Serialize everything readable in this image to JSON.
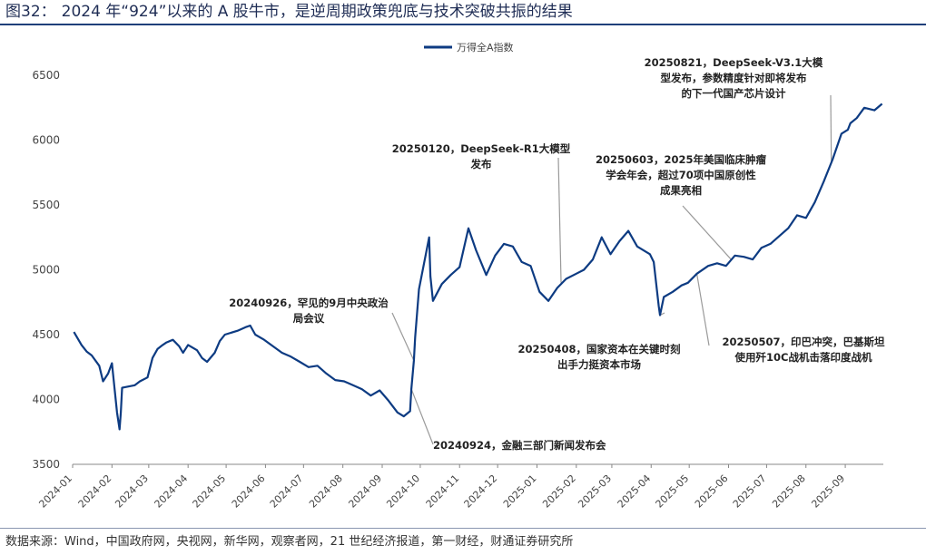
{
  "header": {
    "figure_number": "图32：",
    "title": "2024 年“924”以来的 A 股牛市，是逆周期政策兜底与技术突破共振的结果"
  },
  "footer": {
    "source": "数据来源：Wind，中国政府网，央视网，新华网，观察者网，21 世纪经济报道，第一财经，财通证券研究所"
  },
  "colors": {
    "line": "#0d3b82",
    "leader": "#9a9a9a",
    "rule": "#1f3f7a"
  },
  "chart_data": {
    "type": "line",
    "title": "",
    "xlabel": "",
    "ylabel": "",
    "ylim": [
      3500,
      6500
    ],
    "yticks": [
      "3500",
      "4000",
      "4500",
      "5000",
      "5500",
      "6000",
      "6500"
    ],
    "grid": false,
    "legend_position": "top-center",
    "x_ticks": [
      "2024-01",
      "2024-02",
      "2024-03",
      "2024-04",
      "2024-05",
      "2024-06",
      "2024-07",
      "2024-08",
      "2024-09",
      "2024-10",
      "2024-11",
      "2024-12",
      "2025-01",
      "2025-02",
      "2025-03",
      "2025-04",
      "2025-05",
      "2025-06",
      "2025-07",
      "2025-08",
      "2025-09"
    ],
    "series": [
      {
        "name": "万得全A指数",
        "points": [
          [
            "2024-01-02",
            4520
          ],
          [
            "2024-01-08",
            4420
          ],
          [
            "2024-01-12",
            4370
          ],
          [
            "2024-01-16",
            4340
          ],
          [
            "2024-01-22",
            4260
          ],
          [
            "2024-01-25",
            4140
          ],
          [
            "2024-01-29",
            4200
          ],
          [
            "2024-02-01",
            4280
          ],
          [
            "2024-02-05",
            3900
          ],
          [
            "2024-02-07",
            3770
          ],
          [
            "2024-02-08",
            3900
          ],
          [
            "2024-02-09",
            4090
          ],
          [
            "2024-02-19",
            4110
          ],
          [
            "2024-02-23",
            4140
          ],
          [
            "2024-02-29",
            4170
          ],
          [
            "2024-03-04",
            4320
          ],
          [
            "2024-03-08",
            4390
          ],
          [
            "2024-03-12",
            4420
          ],
          [
            "2024-03-15",
            4440
          ],
          [
            "2024-03-20",
            4460
          ],
          [
            "2024-03-25",
            4410
          ],
          [
            "2024-03-28",
            4360
          ],
          [
            "2024-04-01",
            4420
          ],
          [
            "2024-04-08",
            4380
          ],
          [
            "2024-04-12",
            4320
          ],
          [
            "2024-04-16",
            4290
          ],
          [
            "2024-04-22",
            4360
          ],
          [
            "2024-04-26",
            4450
          ],
          [
            "2024-04-30",
            4500
          ],
          [
            "2024-05-10",
            4530
          ],
          [
            "2024-05-17",
            4560
          ],
          [
            "2024-05-20",
            4570
          ],
          [
            "2024-05-24",
            4500
          ],
          [
            "2024-05-31",
            4460
          ],
          [
            "2024-06-07",
            4410
          ],
          [
            "2024-06-14",
            4360
          ],
          [
            "2024-06-21",
            4330
          ],
          [
            "2024-06-28",
            4290
          ],
          [
            "2024-07-05",
            4250
          ],
          [
            "2024-07-12",
            4260
          ],
          [
            "2024-07-19",
            4200
          ],
          [
            "2024-07-26",
            4150
          ],
          [
            "2024-08-02",
            4140
          ],
          [
            "2024-08-09",
            4110
          ],
          [
            "2024-08-16",
            4080
          ],
          [
            "2024-08-23",
            4030
          ],
          [
            "2024-08-30",
            4070
          ],
          [
            "2024-09-06",
            3990
          ],
          [
            "2024-09-13",
            3900
          ],
          [
            "2024-09-18",
            3870
          ],
          [
            "2024-09-23",
            3910
          ],
          [
            "2024-09-24",
            4080
          ],
          [
            "2024-09-26",
            4300
          ],
          [
            "2024-09-27",
            4480
          ],
          [
            "2024-09-30",
            4850
          ],
          [
            "2024-10-08",
            5250
          ],
          [
            "2024-10-09",
            4950
          ],
          [
            "2024-10-11",
            4760
          ],
          [
            "2024-10-18",
            4890
          ],
          [
            "2024-10-25",
            4960
          ],
          [
            "2024-11-01",
            5020
          ],
          [
            "2024-11-08",
            5320
          ],
          [
            "2024-11-14",
            5150
          ],
          [
            "2024-11-22",
            4960
          ],
          [
            "2024-11-29",
            5110
          ],
          [
            "2024-12-06",
            5200
          ],
          [
            "2024-12-13",
            5180
          ],
          [
            "2024-12-20",
            5060
          ],
          [
            "2024-12-27",
            5030
          ],
          [
            "2025-01-03",
            4830
          ],
          [
            "2025-01-10",
            4760
          ],
          [
            "2025-01-17",
            4860
          ],
          [
            "2025-01-24",
            4930
          ],
          [
            "2025-02-07",
            5000
          ],
          [
            "2025-02-14",
            5080
          ],
          [
            "2025-02-21",
            5250
          ],
          [
            "2025-02-28",
            5120
          ],
          [
            "2025-03-07",
            5220
          ],
          [
            "2025-03-14",
            5300
          ],
          [
            "2025-03-21",
            5180
          ],
          [
            "2025-03-31",
            5120
          ],
          [
            "2025-04-03",
            5060
          ],
          [
            "2025-04-07",
            4720
          ],
          [
            "2025-04-08",
            4650
          ],
          [
            "2025-04-11",
            4790
          ],
          [
            "2025-04-18",
            4830
          ],
          [
            "2025-04-25",
            4880
          ],
          [
            "2025-04-30",
            4900
          ],
          [
            "2025-05-07",
            4970
          ],
          [
            "2025-05-16",
            5030
          ],
          [
            "2025-05-23",
            5050
          ],
          [
            "2025-05-30",
            5030
          ],
          [
            "2025-06-06",
            5110
          ],
          [
            "2025-06-13",
            5100
          ],
          [
            "2025-06-20",
            5080
          ],
          [
            "2025-06-27",
            5170
          ],
          [
            "2025-07-04",
            5200
          ],
          [
            "2025-07-11",
            5260
          ],
          [
            "2025-07-18",
            5320
          ],
          [
            "2025-07-25",
            5420
          ],
          [
            "2025-08-01",
            5400
          ],
          [
            "2025-08-08",
            5520
          ],
          [
            "2025-08-15",
            5680
          ],
          [
            "2025-08-22",
            5850
          ],
          [
            "2025-08-29",
            6050
          ],
          [
            "2025-09-03",
            6080
          ],
          [
            "2025-09-05",
            6130
          ],
          [
            "2025-09-10",
            6170
          ],
          [
            "2025-09-16",
            6250
          ],
          [
            "2025-09-24",
            6230
          ],
          [
            "2025-09-30",
            6280
          ]
        ]
      }
    ],
    "annotations": [
      {
        "lines": [
          "20240924，金融三部门新闻发布会"
        ],
        "target": [
          "2024-09-24",
          4080
        ]
      },
      {
        "lines": [
          "20240926，罕见的9月中央政治",
          "局会议"
        ],
        "target": [
          "2024-09-26",
          4300
        ]
      },
      {
        "lines": [
          "20250120，DeepSeek-R1大模型",
          "发布"
        ],
        "target": [
          "2025-01-20",
          4900
        ]
      },
      {
        "lines": [
          "20250408，国家资本在关键时刻",
          "出手力挺资本市场"
        ],
        "target": [
          "2025-04-08",
          4650
        ]
      },
      {
        "lines": [
          "20250507，印巴冲突，巴基斯坦",
          "使用歼10C战机击落印度战机"
        ],
        "target": [
          "2025-05-07",
          4970
        ]
      },
      {
        "lines": [
          "20250603，2025年美国临床肿瘤",
          "学会年会，超过70项中国原创性",
          "成果亮相"
        ],
        "target": [
          "2025-06-03",
          5080
        ]
      },
      {
        "lines": [
          "20250821，DeepSeek-V3.1大模",
          "型发布，参数精度针对即将发布",
          "的下一代国产芯片设计"
        ],
        "target": [
          "2025-08-21",
          5830
        ]
      }
    ]
  }
}
